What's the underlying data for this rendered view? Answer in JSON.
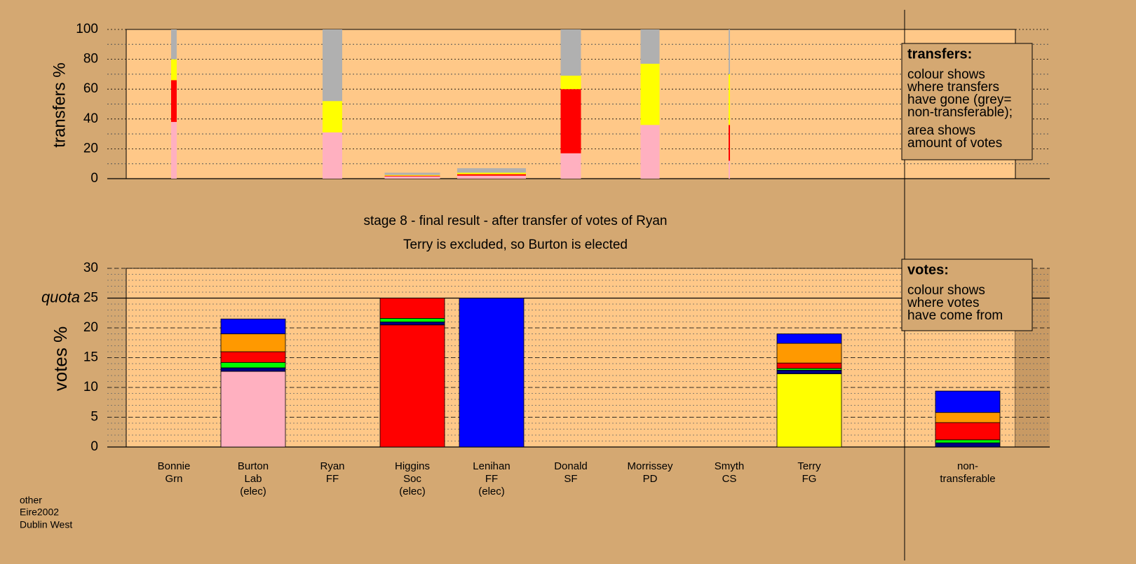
{
  "header": [
    "stage 8 - final result - after transfer of votes of Ryan",
    "Terry is excluded, so Burton is elected"
  ],
  "footer": [
    "other",
    "Eire2002",
    "Dublin West"
  ],
  "chart_data": [
    {
      "type": "stacked-bar",
      "ylabel": "transfers %",
      "ylim": [
        0,
        100
      ],
      "yticks": [
        0,
        20,
        40,
        60,
        80,
        100
      ],
      "minor_yticks": [
        10,
        30,
        50,
        70,
        90
      ],
      "grid": true,
      "legend": {
        "title": "transfers:",
        "lines": [
          "colour shows",
          "where transfers",
          "have gone (grey=",
          "non-transferable);",
          "area shows",
          "amount of votes"
        ]
      },
      "widths": [
        8,
        null,
        28,
        79,
        98,
        29,
        27,
        2,
        null,
        null
      ],
      "series": [
        {
          "color": "#ffb0c0",
          "values": [
            38,
            null,
            31,
            1.5,
            2,
            17,
            36,
            12,
            null,
            null
          ]
        },
        {
          "color": "#ff0000",
          "values": [
            28,
            null,
            0,
            0.5,
            1,
            43,
            0,
            24,
            null,
            null
          ]
        },
        {
          "color": "#ffff00",
          "values": [
            14,
            null,
            21,
            0.5,
            1,
            9,
            41,
            34,
            null,
            null
          ]
        },
        {
          "color": "#b0b0b0",
          "values": [
            20,
            null,
            48,
            1.5,
            3,
            31,
            23,
            30,
            null,
            null
          ]
        }
      ]
    },
    {
      "type": "stacked-bar",
      "ylabel": "votes %",
      "ylim": [
        0,
        30
      ],
      "yticks": [
        0,
        5,
        10,
        15,
        20,
        25,
        30
      ],
      "minor_grid_step": 1,
      "grid": true,
      "quota": {
        "label": "quota",
        "value": 25
      },
      "legend": {
        "title": "votes:",
        "lines": [
          "colour shows",
          "where votes",
          "have come from"
        ]
      },
      "categories": [
        [
          "Bonnie",
          "Grn"
        ],
        [
          "Burton",
          "Lab",
          "(elec)"
        ],
        [
          "Ryan",
          "FF"
        ],
        [
          "Higgins",
          "Soc",
          "(elec)"
        ],
        [
          "Lenihan",
          "FF",
          "(elec)"
        ],
        [
          "Donald",
          "SF"
        ],
        [
          "Morrissey",
          "PD"
        ],
        [
          "Smyth",
          "CS"
        ],
        [
          "Terry",
          "FG"
        ],
        [
          "non-",
          "transferable"
        ]
      ],
      "series": [
        {
          "color": "#ffb0c0",
          "values": [
            0,
            12.7,
            0,
            0,
            0,
            0,
            0,
            0,
            0,
            0
          ]
        },
        {
          "color": "#ffff00",
          "values": [
            0,
            0,
            0,
            0,
            0,
            0,
            0,
            0,
            12.3,
            0
          ]
        },
        {
          "color": "#ff0000",
          "values": [
            0,
            0,
            0,
            20.5,
            0,
            0,
            0,
            0,
            0,
            0
          ]
        },
        {
          "color": "#000080",
          "values": [
            0,
            0.6,
            0,
            0.5,
            0,
            0,
            0,
            0,
            0.6,
            0.7
          ]
        },
        {
          "color": "#00ff00",
          "values": [
            0,
            0.9,
            0,
            0.6,
            0,
            0,
            0,
            0,
            0.3,
            0.5
          ]
        },
        {
          "color": "#ff0000",
          "values": [
            0,
            1.8,
            0,
            3.4,
            0,
            0,
            0,
            0,
            0.9,
            2.9
          ]
        },
        {
          "color": "#ff9900",
          "values": [
            0,
            3,
            0,
            0,
            0,
            0,
            0,
            0,
            3.3,
            1.7
          ]
        },
        {
          "color": "#0000ff",
          "values": [
            0,
            2.5,
            0,
            0,
            25,
            0,
            0,
            0,
            1.6,
            3.6
          ]
        }
      ]
    }
  ]
}
